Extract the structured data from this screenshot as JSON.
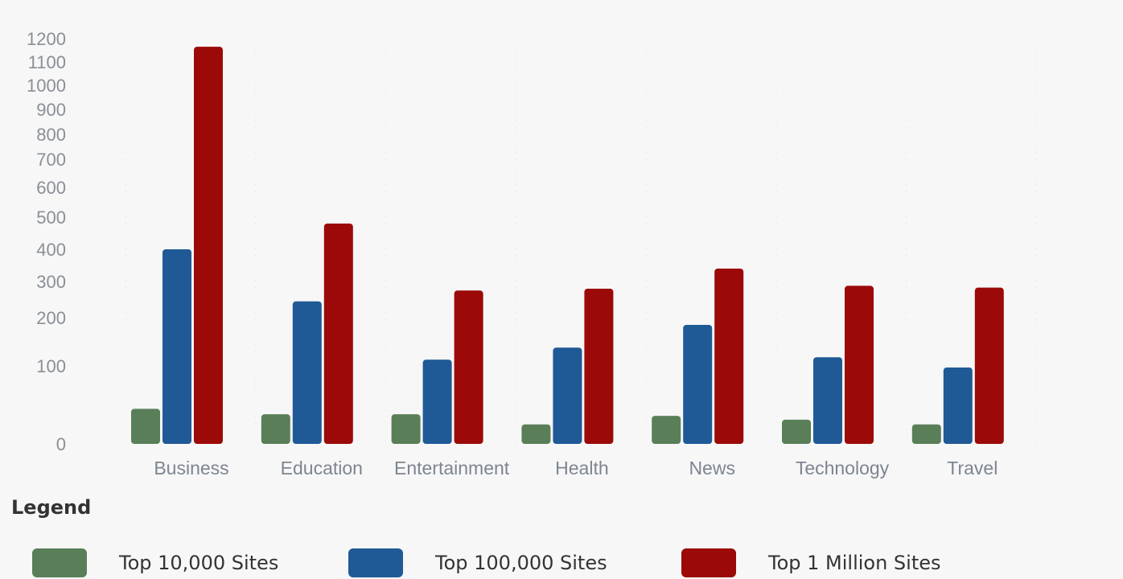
{
  "chart_data": {
    "type": "bar",
    "categories": [
      "Business",
      "Education",
      "Entertainment",
      "Health",
      "News",
      "Technology",
      "Travel"
    ],
    "series": [
      {
        "name": "Top 10,000 Sites",
        "color": "#5a7f58",
        "values": [
          45,
          38,
          38,
          25,
          36,
          31,
          25
        ]
      },
      {
        "name": "Top 100,000 Sites",
        "color": "#1f5a96",
        "values": [
          400,
          245,
          113,
          138,
          185,
          118,
          98
        ]
      },
      {
        "name": "Top 1 Million Sites",
        "color": "#9b0a08",
        "values": [
          1165,
          480,
          275,
          280,
          340,
          288,
          283
        ]
      }
    ],
    "yticks": [
      0,
      100,
      200,
      300,
      400,
      500,
      600,
      700,
      800,
      900,
      1000,
      1100,
      1200
    ],
    "ylim": [
      0,
      1200
    ],
    "yscale": "nonlinear",
    "grid": "vertical-dotted",
    "legend_position": "bottom"
  },
  "legend": {
    "title": "Legend"
  }
}
